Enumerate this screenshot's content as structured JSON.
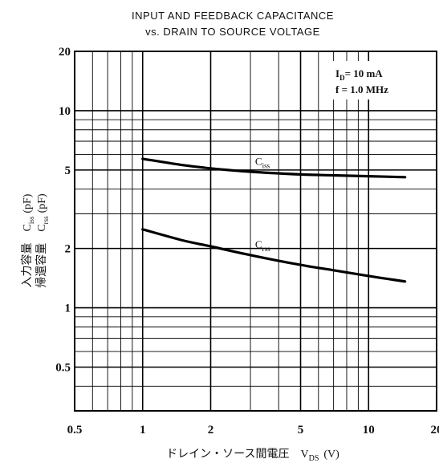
{
  "chart_data": {
    "type": "line",
    "title": "INPUT AND FEEDBACK CAPACITANCE",
    "subtitle": "vs. DRAIN TO SOURCE VOLTAGE",
    "xlabel": "ドレイン・ソース間電圧　V",
    "xlabel_sub": "DS",
    "xlabel_unit": "(V)",
    "ylabel_line1": "入力容量　C",
    "ylabel_line1_sub": "iss",
    "ylabel_line1_unit": "(pF)",
    "ylabel_line2": "帰還容量　C",
    "ylabel_line2_sub": "rss",
    "ylabel_line2_unit": "(pF)",
    "x_scale": "log",
    "y_scale": "log",
    "xlim": [
      0.5,
      20
    ],
    "ylim": [
      0.3,
      20
    ],
    "x_ticks": [
      {
        "value": 0.5,
        "label": "0.5"
      },
      {
        "value": 1,
        "label": "1"
      },
      {
        "value": 2,
        "label": "2"
      },
      {
        "value": 5,
        "label": "5"
      },
      {
        "value": 10,
        "label": "10"
      },
      {
        "value": 20,
        "label": "20"
      }
    ],
    "y_ticks": [
      {
        "value": 0.5,
        "label": "0.5"
      },
      {
        "value": 1,
        "label": "1"
      },
      {
        "value": 2,
        "label": "2"
      },
      {
        "value": 5,
        "label": "5"
      },
      {
        "value": 10,
        "label": "10"
      },
      {
        "value": 20,
        "label": "20"
      }
    ],
    "conditions": [
      "I_D = 10 mA",
      "f = 1.0 MHz"
    ],
    "condition_lines": [
      {
        "main": "I",
        "sub": "D",
        "rest": "= 10 mA"
      },
      {
        "main": "f = 1.0 MHz",
        "sub": "",
        "rest": ""
      }
    ],
    "grid": true,
    "series": [
      {
        "name": "C_iss",
        "label_main": "C",
        "label_sub": "iss",
        "label_at": 2.9,
        "x": [
          1.0,
          1.5,
          2.0,
          3.0,
          5.0,
          7.0,
          10.0,
          14.5
        ],
        "y": [
          5.7,
          5.3,
          5.1,
          4.9,
          4.75,
          4.7,
          4.65,
          4.6
        ]
      },
      {
        "name": "C_rss",
        "label_main": "C",
        "label_sub": "rss",
        "label_at": 2.9,
        "x": [
          1.0,
          1.5,
          2.0,
          3.0,
          5.0,
          7.0,
          10.0,
          14.5
        ],
        "y": [
          2.5,
          2.2,
          2.05,
          1.85,
          1.65,
          1.55,
          1.45,
          1.36
        ]
      }
    ]
  }
}
